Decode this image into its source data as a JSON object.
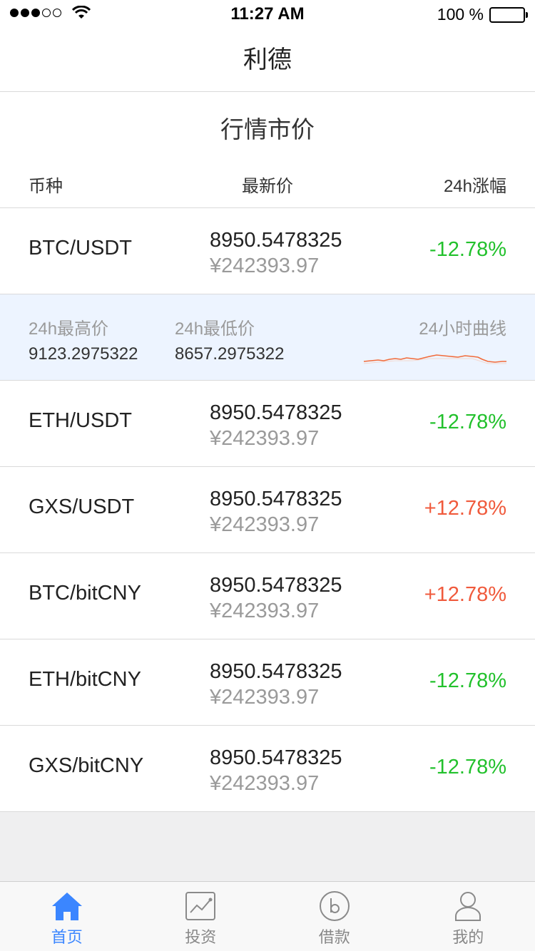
{
  "status_bar": {
    "signal_filled": 3,
    "signal_total": 5,
    "time": "11:27 AM",
    "battery": "100 %"
  },
  "nav": {
    "title": "利德"
  },
  "market": {
    "title": "行情市价",
    "headers": {
      "pair": "币种",
      "price": "最新价",
      "change": "24h涨幅"
    },
    "rows": [
      {
        "pair": "BTC/USDT",
        "price": "8950.5478325",
        "cny": "¥242393.97",
        "change": "-12.78%",
        "trend": "down"
      },
      {
        "pair": "ETH/USDT",
        "price": "8950.5478325",
        "cny": "¥242393.97",
        "change": "-12.78%",
        "trend": "down"
      },
      {
        "pair": "GXS/USDT",
        "price": "8950.5478325",
        "cny": "¥242393.97",
        "change": "+12.78%",
        "trend": "up"
      },
      {
        "pair": "BTC/bitCNY",
        "price": "8950.5478325",
        "cny": "¥242393.97",
        "change": "+12.78%",
        "trend": "up"
      },
      {
        "pair": "ETH/bitCNY",
        "price": "8950.5478325",
        "cny": "¥242393.97",
        "change": "-12.78%",
        "trend": "down"
      },
      {
        "pair": "GXS/bitCNY",
        "price": "8950.5478325",
        "cny": "¥242393.97",
        "change": "-12.78%",
        "trend": "down"
      }
    ],
    "detail": {
      "high_label": "24h最高价",
      "high_value": "9123.2975322",
      "low_label": "24h最低价",
      "low_value": "8657.2975322",
      "curve_label": "24小时曲线",
      "curve_color": "#f26b3a"
    }
  },
  "colors": {
    "down": "#22c12c",
    "up": "#f05a3c",
    "accent": "#3b86ff"
  },
  "tabs": [
    {
      "label": "首页",
      "icon": "home-icon",
      "active": true
    },
    {
      "label": "投资",
      "icon": "chart-icon",
      "active": false
    },
    {
      "label": "借款",
      "icon": "loan-b-icon",
      "active": false
    },
    {
      "label": "我的",
      "icon": "user-icon",
      "active": false
    }
  ]
}
